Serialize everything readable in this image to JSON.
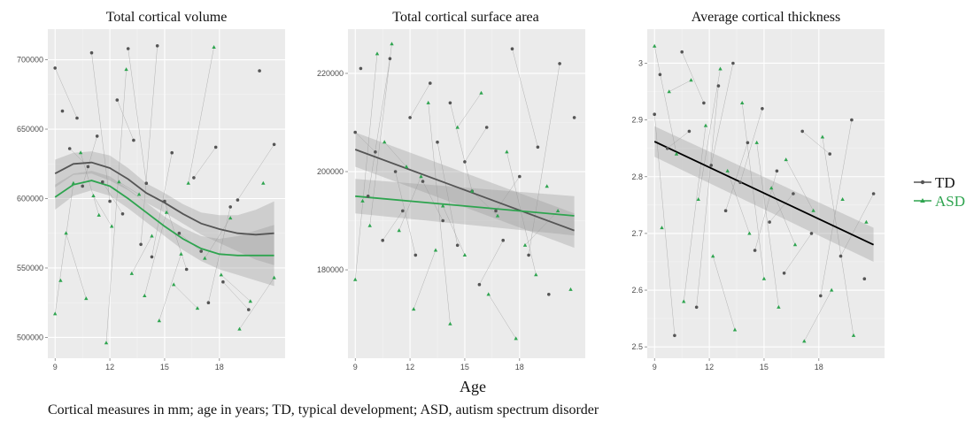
{
  "figure": {
    "x_axis_label": "Age",
    "caption": "Cortical measures in mm; age in years; TD, typical development; ASD, autism spectrum disorder"
  },
  "legend": [
    {
      "name": "TD",
      "color": "#555555",
      "marker": "circle"
    },
    {
      "name": "ASD",
      "color": "#2ea44f",
      "marker": "triangle"
    }
  ],
  "chart_data": [
    {
      "type": "scatter",
      "title": "Total cortical volume",
      "xlim": [
        8.6,
        21.6
      ],
      "ylim": [
        485000,
        722000
      ],
      "x_ticks": [
        9,
        12,
        15,
        18
      ],
      "y_ticks": [
        500000,
        550000,
        600000,
        650000,
        700000
      ],
      "grid": true,
      "fit": "loess",
      "series": [
        {
          "name": "TD",
          "color": "#555555",
          "x": [
            9.0,
            9.4,
            9.8,
            10.2,
            10.5,
            10.8,
            11.0,
            11.3,
            11.6,
            12.0,
            12.4,
            12.7,
            13.0,
            13.3,
            13.7,
            14.0,
            14.3,
            14.6,
            15.0,
            15.4,
            15.8,
            16.2,
            16.6,
            17.0,
            17.4,
            17.8,
            18.2,
            18.6,
            19.0,
            19.6,
            20.2,
            21.0
          ],
          "y": [
            694000,
            663000,
            636000,
            658000,
            609000,
            623000,
            705000,
            645000,
            612000,
            598000,
            671000,
            589000,
            708000,
            642000,
            567000,
            611000,
            558000,
            710000,
            598000,
            633000,
            575000,
            549000,
            615000,
            562000,
            525000,
            637000,
            540000,
            594000,
            599000,
            520000,
            692000,
            639000
          ],
          "fit": {
            "x": [
              9.0,
              10.0,
              11.0,
              12.0,
              13.0,
              14.0,
              15.0,
              16.0,
              17.0,
              18.0,
              19.0,
              20.0,
              21.0
            ],
            "y": [
              618000,
              625000,
              626000,
              622000,
              614000,
              604000,
              597000,
              589000,
              582000,
              578000,
              575000,
              574000,
              575000
            ],
            "lower": [
              608000,
              617000,
              618000,
              613000,
              606000,
              597000,
              590000,
              582000,
              574000,
              568000,
              562000,
              556000,
              552000
            ],
            "upper": [
              628000,
              633000,
              634000,
              631000,
              622000,
              611000,
              604000,
              596000,
              590000,
              588000,
              588000,
              592000,
              598000
            ]
          }
        },
        {
          "name": "ASD",
          "color": "#2ea44f",
          "x": [
            9.0,
            9.3,
            9.6,
            10.0,
            10.4,
            10.7,
            11.1,
            11.4,
            11.8,
            12.1,
            12.5,
            12.9,
            13.2,
            13.6,
            13.9,
            14.3,
            14.7,
            15.1,
            15.5,
            15.9,
            16.3,
            16.8,
            17.2,
            17.7,
            18.1,
            18.6,
            19.1,
            19.7,
            20.4,
            21.0
          ],
          "y": [
            517000,
            541000,
            575000,
            611000,
            633000,
            528000,
            602000,
            588000,
            496000,
            580000,
            612000,
            693000,
            546000,
            603000,
            530000,
            573000,
            512000,
            590000,
            538000,
            560000,
            611000,
            521000,
            557000,
            709000,
            545000,
            586000,
            506000,
            526000,
            611000,
            543000
          ],
          "fit": {
            "x": [
              9.0,
              10.0,
              11.0,
              12.0,
              13.0,
              14.0,
              15.0,
              16.0,
              17.0,
              18.0,
              19.0,
              20.0,
              21.0
            ],
            "y": [
              601000,
              610000,
              613000,
              609000,
              600000,
              590000,
              580000,
              571000,
              564000,
              560000,
              559000,
              559000,
              559000
            ],
            "lower": [
              592000,
              602000,
              606000,
              602000,
              593000,
              583000,
              573000,
              563000,
              555000,
              549000,
              545000,
              541000,
              537000
            ],
            "upper": [
              610000,
              618000,
              620000,
              616000,
              607000,
              597000,
              587000,
              579000,
              573000,
              571000,
              573000,
              577000,
              581000
            ]
          }
        }
      ]
    },
    {
      "type": "scatter",
      "title": "Total cortical surface area",
      "xlim": [
        8.6,
        21.6
      ],
      "ylim": [
        162000,
        229000
      ],
      "x_ticks": [
        9,
        12,
        15,
        18
      ],
      "y_ticks": [
        180000,
        200000,
        220000
      ],
      "grid": true,
      "fit": "linear",
      "series": [
        {
          "name": "TD",
          "color": "#555555",
          "x": [
            9.0,
            9.3,
            9.7,
            10.1,
            10.5,
            10.9,
            11.2,
            11.6,
            12.0,
            12.3,
            12.7,
            13.1,
            13.5,
            13.8,
            14.2,
            14.6,
            15.0,
            15.4,
            15.8,
            16.2,
            16.7,
            17.1,
            17.6,
            18.0,
            18.5,
            19.0,
            19.6,
            20.2,
            21.0
          ],
          "y": [
            208000,
            221000,
            195000,
            204000,
            186000,
            223000,
            200000,
            192000,
            211000,
            183000,
            198000,
            218000,
            206000,
            190000,
            214000,
            185000,
            202000,
            196000,
            177000,
            209000,
            192000,
            186000,
            225000,
            199000,
            183000,
            205000,
            175000,
            222000,
            211000
          ],
          "fit": {
            "x": [
              9.0,
              21.0
            ],
            "y": [
              204500,
              188000
            ],
            "lower": [
              201000,
              184500
            ],
            "upper": [
              208000,
              191500
            ]
          }
        },
        {
          "name": "ASD",
          "color": "#2ea44f",
          "x": [
            9.0,
            9.4,
            9.8,
            10.2,
            10.6,
            11.0,
            11.4,
            11.8,
            12.2,
            12.6,
            13.0,
            13.4,
            13.8,
            14.2,
            14.6,
            15.0,
            15.4,
            15.9,
            16.3,
            16.8,
            17.3,
            17.8,
            18.3,
            18.9,
            19.5,
            20.1,
            20.8
          ],
          "y": [
            178000,
            194000,
            189000,
            224000,
            206000,
            226000,
            188000,
            201000,
            172000,
            199000,
            214000,
            184000,
            193000,
            169000,
            209000,
            183000,
            196000,
            216000,
            175000,
            191000,
            204000,
            166000,
            185000,
            179000,
            197000,
            192000,
            176000
          ],
          "fit": {
            "x": [
              9.0,
              21.0
            ],
            "y": [
              195000,
              191000
            ],
            "lower": [
              191500,
              187000
            ],
            "upper": [
              198500,
              195000
            ]
          }
        }
      ]
    },
    {
      "type": "scatter",
      "title": "Average cortical thickness",
      "xlim": [
        8.6,
        21.6
      ],
      "ylim": [
        2.48,
        3.06
      ],
      "x_ticks": [
        9,
        12,
        15,
        18
      ],
      "y_ticks": [
        2.5,
        2.6,
        2.7,
        2.8,
        2.9,
        3.0
      ],
      "grid": true,
      "fit": "linear",
      "series": [
        {
          "name": "TD",
          "color": "#555555",
          "x": [
            9.0,
            9.3,
            9.7,
            10.1,
            10.5,
            10.9,
            11.3,
            11.7,
            12.1,
            12.5,
            12.9,
            13.3,
            13.7,
            14.1,
            14.5,
            14.9,
            15.3,
            15.7,
            16.1,
            16.6,
            17.1,
            17.6,
            18.1,
            18.6,
            19.2,
            19.8,
            20.5,
            21.0
          ],
          "y": [
            2.91,
            2.98,
            2.85,
            2.52,
            3.02,
            2.88,
            2.57,
            2.93,
            2.82,
            2.96,
            2.74,
            3.0,
            2.79,
            2.86,
            2.67,
            2.92,
            2.72,
            2.81,
            2.63,
            2.77,
            2.88,
            2.7,
            2.59,
            2.84,
            2.66,
            2.9,
            2.62,
            2.77
          ],
          "fit": {
            "x": [
              9.0,
              21.0
            ],
            "y": [
              2.862,
              2.68
            ],
            "lower": [
              2.835,
              2.65
            ],
            "upper": [
              2.889,
              2.71
            ]
          }
        },
        {
          "name": "ASD",
          "color": "#2ea44f",
          "x": [
            9.0,
            9.4,
            9.8,
            10.2,
            10.6,
            11.0,
            11.4,
            11.8,
            12.2,
            12.6,
            13.0,
            13.4,
            13.8,
            14.2,
            14.6,
            15.0,
            15.4,
            15.8,
            16.2,
            16.7,
            17.2,
            17.7,
            18.2,
            18.7,
            19.3,
            19.9,
            20.6
          ],
          "y": [
            3.03,
            2.71,
            2.95,
            2.84,
            2.58,
            2.97,
            2.76,
            2.89,
            2.66,
            2.99,
            2.81,
            2.53,
            2.93,
            2.7,
            2.86,
            2.62,
            2.78,
            2.57,
            2.83,
            2.68,
            2.51,
            2.74,
            2.87,
            2.6,
            2.76,
            2.52,
            2.72
          ],
          "fit": null
        }
      ]
    }
  ]
}
